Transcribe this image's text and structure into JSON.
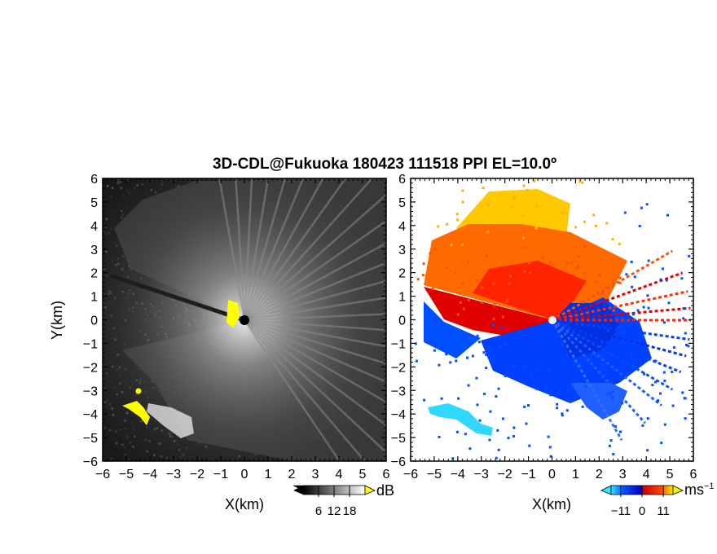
{
  "title": "3D-CDL@Fukuoka 180423 111518 PPI EL=10.0º",
  "chart_data": [
    {
      "type": "heatmap",
      "name": "reflectivity",
      "xlabel": "X(km)",
      "ylabel": "Y(km)",
      "xlim": [
        -6,
        6
      ],
      "ylim": [
        -6,
        6
      ],
      "xticks": [
        -6,
        -5,
        -4,
        -3,
        -2,
        -1,
        0,
        1,
        2,
        3,
        4,
        5,
        6
      ],
      "yticks": [
        -6,
        -5,
        -4,
        -3,
        -2,
        -1,
        0,
        1,
        2,
        3,
        4,
        5,
        6
      ],
      "radar_origin": [
        0,
        0
      ],
      "colorbar": {
        "unit": "dB",
        "ticks": [
          6,
          12,
          18
        ],
        "range": [
          0,
          24
        ],
        "colors": [
          "#000000",
          "#ffffff"
        ]
      },
      "highlight_color": "#ffff00"
    },
    {
      "type": "heatmap",
      "name": "doppler_velocity",
      "xlabel": "X(km)",
      "ylabel": "",
      "xlim": [
        -6,
        6
      ],
      "ylim": [
        -6,
        6
      ],
      "xticks": [
        -6,
        -5,
        -4,
        -3,
        -2,
        -1,
        0,
        1,
        2,
        3,
        4,
        5,
        6
      ],
      "yticks": [
        -6,
        -5,
        -4,
        -3,
        -2,
        -1,
        0,
        1,
        2,
        3,
        4,
        5,
        6
      ],
      "radar_origin": [
        0,
        0
      ],
      "colorbar": {
        "unit": "ms",
        "unit_exp": "−1",
        "ticks": [
          "−11",
          "0",
          "11"
        ],
        "tick_values": [
          -11,
          0,
          11
        ],
        "range": [
          -16,
          16
        ],
        "colors": [
          "#33e6ff",
          "#0050ff",
          "#0000c8",
          "#c80000",
          "#ff4400",
          "#ffee00"
        ]
      }
    }
  ]
}
